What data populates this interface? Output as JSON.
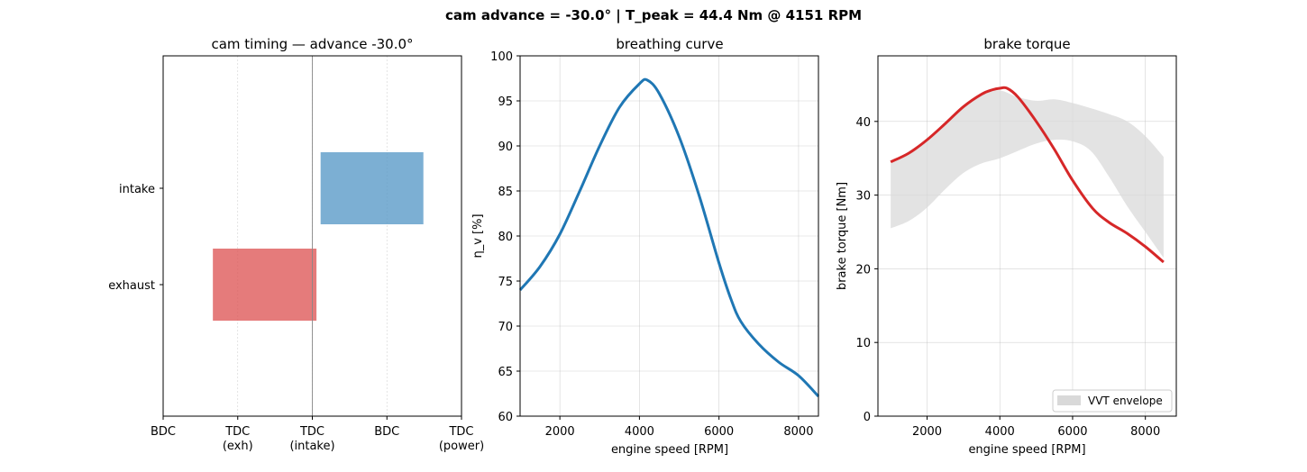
{
  "suptitle": "cam advance = -30.0°   |   T_peak =  44.4 Nm @  4151 RPM",
  "colors": {
    "intake": "#5b9bc8",
    "exhaust": "#df5a5a",
    "breathing": "#1f77b4",
    "torque": "#d62728",
    "envelope": "#d9d9d9"
  },
  "chart_data": [
    {
      "type": "bar",
      "orientation": "horizontal",
      "title": "cam timing — advance -30.0°",
      "xlim": [
        0,
        720
      ],
      "x_ticks": [
        {
          "value": 0,
          "label": "BDC",
          "sub": ""
        },
        {
          "value": 180,
          "label": "TDC",
          "sub": "(exh)"
        },
        {
          "value": 360,
          "label": "TDC",
          "sub": "(intake)"
        },
        {
          "value": 540,
          "label": "BDC",
          "sub": ""
        },
        {
          "value": 720,
          "label": "TDC",
          "sub": "(power)"
        }
      ],
      "categories": [
        "exhaust",
        "intake"
      ],
      "bars": [
        {
          "name": "exhaust",
          "start": 120,
          "end": 370
        },
        {
          "name": "intake",
          "start": 380,
          "end": 628
        }
      ],
      "grid": "vertical"
    },
    {
      "type": "line",
      "title": "breathing curve",
      "xlabel": "engine speed [RPM]",
      "ylabel": "η_v [%]",
      "xlim": [
        1000,
        8500
      ],
      "ylim": [
        60,
        100
      ],
      "x_ticks": [
        2000,
        4000,
        6000,
        8000
      ],
      "y_ticks": [
        60,
        65,
        70,
        75,
        80,
        85,
        90,
        95,
        100
      ],
      "grid": true,
      "series": [
        {
          "x": [
            1000,
            1500,
            2000,
            2500,
            3000,
            3500,
            4000,
            4200,
            4500,
            5000,
            5500,
            6000,
            6300,
            6550,
            7000,
            7500,
            8000,
            8500
          ],
          "y": [
            74.0,
            76.6,
            80.2,
            85.0,
            90.0,
            94.3,
            96.9,
            97.3,
            95.8,
            91.0,
            84.5,
            77.0,
            73.0,
            70.5,
            68.0,
            66.0,
            64.5,
            62.2
          ]
        }
      ]
    },
    {
      "type": "line",
      "title": "brake torque",
      "xlabel": "engine speed [RPM]",
      "ylabel": "brake torque [Nm]",
      "xlim": [
        650,
        8850
      ],
      "ylim": [
        0,
        48.9
      ],
      "x_ticks": [
        2000,
        4000,
        6000,
        8000
      ],
      "y_ticks": [
        0,
        10,
        20,
        30,
        40
      ],
      "grid": true,
      "legend": {
        "position": "bottom-right",
        "entries": [
          "VVT envelope"
        ]
      },
      "envelope": {
        "name": "VVT envelope",
        "x": [
          1000,
          1500,
          2000,
          2500,
          3000,
          3500,
          4000,
          4500,
          5000,
          5500,
          6000,
          6500,
          7000,
          7500,
          8000,
          8500
        ],
        "upper": [
          34.3,
          35.5,
          37.3,
          39.5,
          42.0,
          43.8,
          44.2,
          43.3,
          42.8,
          43.0,
          42.5,
          41.8,
          41.0,
          40.0,
          38.0,
          35.2
        ],
        "lower": [
          25.5,
          26.5,
          28.3,
          30.8,
          33.0,
          34.3,
          35.0,
          36.0,
          37.0,
          37.5,
          37.3,
          36.0,
          32.5,
          28.5,
          25.0,
          21.5
        ]
      },
      "series": [
        {
          "x": [
            1000,
            1500,
            2000,
            2500,
            3000,
            3500,
            3800,
            4000,
            4200,
            4500,
            5000,
            5500,
            6000,
            6550,
            7000,
            7500,
            8000,
            8500
          ],
          "y": [
            34.5,
            35.7,
            37.5,
            39.7,
            42.0,
            43.7,
            44.3,
            44.5,
            44.5,
            43.3,
            40.0,
            36.2,
            32.0,
            28.2,
            26.3,
            24.8,
            23.0,
            20.9
          ]
        }
      ]
    }
  ]
}
